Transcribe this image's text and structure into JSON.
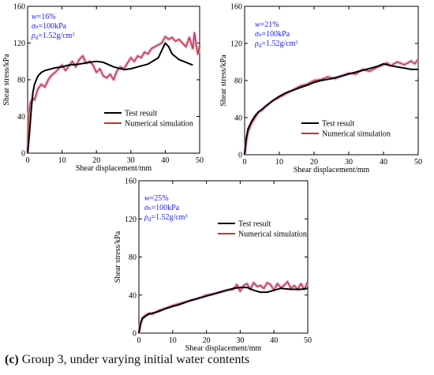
{
  "caption": {
    "tag": "(c)",
    "text": "Group 3, under varying initial water contents"
  },
  "colors": {
    "test": "#000000",
    "simulation": "#c0392b",
    "simulation_halo": "#e39ad6",
    "annotation": "#1a1aff"
  },
  "chart_data": [
    {
      "type": "line",
      "xlabel": "Shear displacement/mm",
      "ylabel": "Shear stress/kPa",
      "xlim": [
        0,
        50
      ],
      "ylim": [
        0,
        160
      ],
      "xticks": [
        "0",
        "10",
        "20",
        "30",
        "40",
        "50"
      ],
      "yticks": [
        "0",
        "40",
        "80",
        "120",
        "160"
      ],
      "grid": false,
      "legend": "center-right",
      "annotations": [
        {
          "text": "w=16%"
        },
        {
          "text": "σn=100kPa"
        },
        {
          "text": "ρd=1.52g/cm³"
        }
      ],
      "series": [
        {
          "name": "Test result",
          "x": [
            0,
            0.5,
            1,
            1.5,
            2,
            3,
            4,
            5,
            6,
            8,
            10,
            12,
            15,
            18,
            20,
            22,
            25,
            28,
            30,
            32,
            35,
            38,
            40,
            41,
            42,
            44,
            46,
            48
          ],
          "y": [
            0,
            20,
            45,
            65,
            75,
            84,
            88,
            90,
            91,
            93,
            94,
            96,
            97,
            99,
            100,
            99,
            94,
            91,
            92,
            94,
            97,
            104,
            120,
            116,
            108,
            102,
            99,
            96
          ]
        },
        {
          "name": "Numerical simulation",
          "x": [
            0,
            0.3,
            0.8,
            1.5,
            2,
            3,
            4,
            5,
            6,
            7,
            8,
            9,
            10,
            11,
            12,
            13,
            14,
            15,
            16,
            17,
            18,
            19,
            20,
            21,
            22,
            23,
            24,
            25,
            26,
            27,
            28,
            29,
            30,
            31,
            32,
            33,
            34,
            35,
            36,
            37,
            38,
            39,
            40,
            41,
            42,
            43,
            44,
            45,
            46,
            47,
            48,
            48.5,
            49,
            49.5,
            50
          ],
          "y": [
            0,
            40,
            55,
            60,
            58,
            70,
            75,
            72,
            80,
            85,
            88,
            92,
            96,
            90,
            95,
            100,
            94,
            102,
            106,
            98,
            100,
            96,
            88,
            92,
            84,
            82,
            86,
            80,
            90,
            94,
            92,
            98,
            104,
            100,
            106,
            104,
            110,
            108,
            114,
            116,
            118,
            120,
            127,
            124,
            126,
            122,
            124,
            120,
            116,
            126,
            114,
            131,
            118,
            108,
            117
          ]
        }
      ]
    },
    {
      "type": "line",
      "xlabel": "Shear displacement/mm",
      "ylabel": "Shear stress/kPa",
      "xlim": [
        0,
        50
      ],
      "ylim": [
        0,
        160
      ],
      "xticks": [
        "0",
        "10",
        "20",
        "30",
        "40",
        "50"
      ],
      "yticks": [
        "0",
        "40",
        "80",
        "120",
        "160"
      ],
      "grid": false,
      "legend": "lower-right",
      "annotations": [
        {
          "text": "w=21%"
        },
        {
          "text": "σn=100kPa"
        },
        {
          "text": "ρd=1.52g/cm³"
        }
      ],
      "series": [
        {
          "name": "Test result",
          "x": [
            0,
            0.5,
            1,
            2,
            3,
            4,
            6,
            8,
            10,
            12,
            15,
            18,
            20,
            22,
            25,
            28,
            30,
            32,
            35,
            38,
            40,
            42,
            45,
            48,
            50
          ],
          "y": [
            0,
            18,
            28,
            36,
            42,
            46,
            52,
            58,
            63,
            67,
            71,
            75,
            78,
            80,
            82,
            85,
            87,
            89,
            92,
            95,
            98,
            96,
            94,
            92,
            92
          ]
        },
        {
          "name": "Numerical simulation",
          "x": [
            0,
            0.5,
            1,
            2,
            3,
            4,
            5,
            6,
            8,
            10,
            12,
            14,
            16,
            18,
            20,
            22,
            24,
            26,
            28,
            30,
            32,
            34,
            36,
            38,
            40,
            41,
            42,
            44,
            46,
            48,
            49,
            50
          ],
          "y": [
            0,
            15,
            25,
            34,
            40,
            46,
            48,
            52,
            58,
            62,
            66,
            70,
            74,
            76,
            80,
            81,
            84,
            82,
            85,
            88,
            87,
            92,
            90,
            94,
            97,
            99,
            96,
            100,
            97,
            101,
            98,
            103
          ]
        }
      ]
    },
    {
      "type": "line",
      "xlabel": "Shear displacement/mm",
      "ylabel": "Shear stress/kPa",
      "xlim": [
        0,
        50
      ],
      "ylim": [
        0,
        160
      ],
      "xticks": [
        "0",
        "10",
        "20",
        "30",
        "40",
        "50"
      ],
      "yticks": [
        "0",
        "40",
        "80",
        "120",
        "160"
      ],
      "grid": false,
      "legend": "center-right",
      "annotations": [
        {
          "text": "w=25%"
        },
        {
          "text": "σn=100kPa"
        },
        {
          "text": "ρd=1.52g/cm³"
        }
      ],
      "series": [
        {
          "name": "Test result",
          "x": [
            0,
            0.5,
            1,
            2,
            3,
            4,
            6,
            8,
            10,
            12,
            15,
            18,
            20,
            22,
            25,
            28,
            30,
            32,
            34,
            36,
            38,
            40,
            42,
            45,
            48,
            50
          ],
          "y": [
            0,
            10,
            15,
            18,
            20,
            21,
            23,
            26,
            28,
            30,
            34,
            37,
            39,
            41,
            44,
            47,
            48,
            48,
            45,
            43,
            43,
            45,
            47,
            46,
            46,
            47
          ]
        },
        {
          "name": "Numerical simulation",
          "x": [
            0,
            0.5,
            1,
            2,
            3,
            4,
            5,
            6,
            8,
            10,
            12,
            14,
            16,
            18,
            20,
            22,
            24,
            26,
            28,
            29,
            30,
            31,
            32,
            33,
            34,
            35,
            36,
            37,
            38,
            39,
            40,
            41,
            42,
            43,
            44,
            45,
            46,
            47,
            48,
            49,
            50
          ],
          "y": [
            0,
            10,
            16,
            19,
            21,
            20,
            22,
            24,
            26,
            29,
            31,
            33,
            35,
            37,
            40,
            41,
            43,
            45,
            46,
            51,
            44,
            50,
            52,
            46,
            53,
            49,
            50,
            47,
            53,
            51,
            45,
            52,
            48,
            50,
            54,
            47,
            50,
            46,
            52,
            46,
            54
          ]
        }
      ]
    }
  ]
}
